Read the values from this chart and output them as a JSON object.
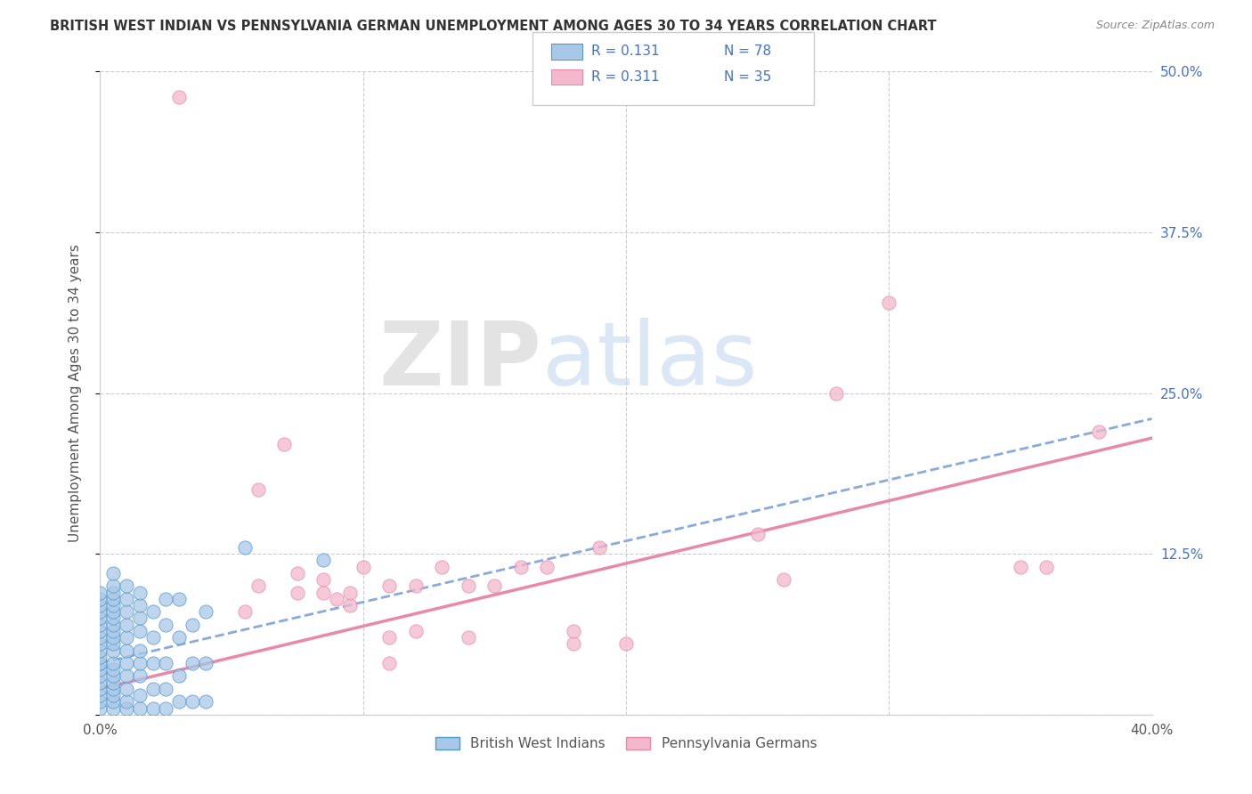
{
  "title": "BRITISH WEST INDIAN VS PENNSYLVANIA GERMAN UNEMPLOYMENT AMONG AGES 30 TO 34 YEARS CORRELATION CHART",
  "source": "Source: ZipAtlas.com",
  "ylabel": "Unemployment Among Ages 30 to 34 years",
  "xlim": [
    0.0,
    0.4
  ],
  "ylim": [
    0.0,
    0.5
  ],
  "xticks": [
    0.0,
    0.1,
    0.2,
    0.3,
    0.4
  ],
  "xticklabels": [
    "0.0%",
    "",
    "",
    "",
    "40.0%"
  ],
  "ytick_positions": [
    0.0,
    0.125,
    0.25,
    0.375,
    0.5
  ],
  "yticklabels_right": [
    "",
    "12.5%",
    "25.0%",
    "37.5%",
    "50.0%"
  ],
  "color_blue": "#a8c8e8",
  "color_pink": "#f4b8cc",
  "color_blue_edge": "#5599cc",
  "color_pink_edge": "#e888aa",
  "trendline_blue_color": "#88aadd",
  "trendline_pink_color": "#e888aa",
  "watermark_zip": "ZIP",
  "watermark_atlas": "atlas",
  "legend_label_blue": "British West Indians",
  "legend_label_pink": "Pennsylvania Germans",
  "blue_scatter": [
    [
      0.0,
      0.005
    ],
    [
      0.0,
      0.01
    ],
    [
      0.0,
      0.015
    ],
    [
      0.0,
      0.02
    ],
    [
      0.0,
      0.025
    ],
    [
      0.0,
      0.03
    ],
    [
      0.0,
      0.035
    ],
    [
      0.0,
      0.04
    ],
    [
      0.0,
      0.04
    ],
    [
      0.0,
      0.045
    ],
    [
      0.0,
      0.05
    ],
    [
      0.0,
      0.055
    ],
    [
      0.0,
      0.06
    ],
    [
      0.0,
      0.065
    ],
    [
      0.0,
      0.07
    ],
    [
      0.0,
      0.075
    ],
    [
      0.0,
      0.08
    ],
    [
      0.0,
      0.085
    ],
    [
      0.0,
      0.09
    ],
    [
      0.0,
      0.095
    ],
    [
      0.005,
      0.005
    ],
    [
      0.005,
      0.01
    ],
    [
      0.005,
      0.015
    ],
    [
      0.005,
      0.02
    ],
    [
      0.005,
      0.025
    ],
    [
      0.005,
      0.03
    ],
    [
      0.005,
      0.035
    ],
    [
      0.005,
      0.04
    ],
    [
      0.005,
      0.05
    ],
    [
      0.005,
      0.055
    ],
    [
      0.005,
      0.06
    ],
    [
      0.005,
      0.065
    ],
    [
      0.005,
      0.07
    ],
    [
      0.005,
      0.075
    ],
    [
      0.005,
      0.08
    ],
    [
      0.005,
      0.085
    ],
    [
      0.005,
      0.09
    ],
    [
      0.005,
      0.095
    ],
    [
      0.005,
      0.1
    ],
    [
      0.005,
      0.11
    ],
    [
      0.01,
      0.005
    ],
    [
      0.01,
      0.01
    ],
    [
      0.01,
      0.02
    ],
    [
      0.01,
      0.03
    ],
    [
      0.01,
      0.04
    ],
    [
      0.01,
      0.05
    ],
    [
      0.01,
      0.06
    ],
    [
      0.01,
      0.07
    ],
    [
      0.01,
      0.08
    ],
    [
      0.01,
      0.09
    ],
    [
      0.01,
      0.1
    ],
    [
      0.015,
      0.005
    ],
    [
      0.015,
      0.015
    ],
    [
      0.015,
      0.03
    ],
    [
      0.015,
      0.04
    ],
    [
      0.015,
      0.05
    ],
    [
      0.015,
      0.065
    ],
    [
      0.015,
      0.075
    ],
    [
      0.015,
      0.085
    ],
    [
      0.015,
      0.095
    ],
    [
      0.02,
      0.005
    ],
    [
      0.02,
      0.02
    ],
    [
      0.02,
      0.04
    ],
    [
      0.02,
      0.06
    ],
    [
      0.02,
      0.08
    ],
    [
      0.025,
      0.005
    ],
    [
      0.025,
      0.02
    ],
    [
      0.025,
      0.04
    ],
    [
      0.025,
      0.07
    ],
    [
      0.025,
      0.09
    ],
    [
      0.03,
      0.01
    ],
    [
      0.03,
      0.03
    ],
    [
      0.03,
      0.06
    ],
    [
      0.03,
      0.09
    ],
    [
      0.035,
      0.01
    ],
    [
      0.035,
      0.04
    ],
    [
      0.035,
      0.07
    ],
    [
      0.04,
      0.01
    ],
    [
      0.04,
      0.04
    ],
    [
      0.04,
      0.08
    ],
    [
      0.055,
      0.13
    ],
    [
      0.085,
      0.12
    ]
  ],
  "pink_scatter": [
    [
      0.03,
      0.48
    ],
    [
      0.07,
      0.21
    ],
    [
      0.06,
      0.175
    ],
    [
      0.06,
      0.1
    ],
    [
      0.055,
      0.08
    ],
    [
      0.075,
      0.095
    ],
    [
      0.075,
      0.11
    ],
    [
      0.085,
      0.095
    ],
    [
      0.085,
      0.105
    ],
    [
      0.09,
      0.09
    ],
    [
      0.095,
      0.085
    ],
    [
      0.095,
      0.095
    ],
    [
      0.1,
      0.115
    ],
    [
      0.11,
      0.1
    ],
    [
      0.11,
      0.06
    ],
    [
      0.11,
      0.04
    ],
    [
      0.12,
      0.1
    ],
    [
      0.12,
      0.065
    ],
    [
      0.13,
      0.115
    ],
    [
      0.14,
      0.1
    ],
    [
      0.14,
      0.06
    ],
    [
      0.15,
      0.1
    ],
    [
      0.16,
      0.115
    ],
    [
      0.17,
      0.115
    ],
    [
      0.18,
      0.055
    ],
    [
      0.18,
      0.065
    ],
    [
      0.19,
      0.13
    ],
    [
      0.2,
      0.055
    ],
    [
      0.25,
      0.14
    ],
    [
      0.26,
      0.105
    ],
    [
      0.28,
      0.25
    ],
    [
      0.3,
      0.32
    ],
    [
      0.35,
      0.115
    ],
    [
      0.36,
      0.115
    ],
    [
      0.38,
      0.22
    ]
  ],
  "blue_trend_x": [
    0.0,
    0.4
  ],
  "blue_trend_y": [
    0.04,
    0.23
  ],
  "pink_trend_x": [
    0.0,
    0.4
  ],
  "pink_trend_y": [
    0.02,
    0.215
  ]
}
